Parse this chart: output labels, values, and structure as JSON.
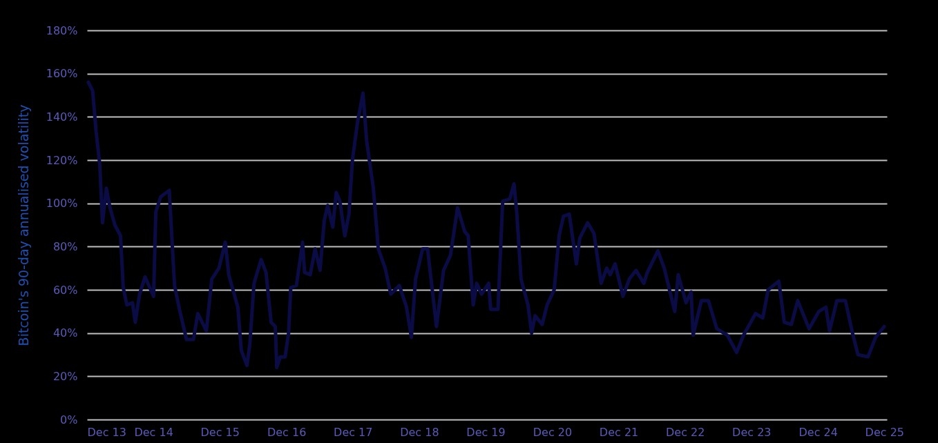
{
  "chart_data": {
    "type": "line",
    "ylabel": "Bitcoin's 90-day annualised volatility",
    "x": [
      "2013-12-08",
      "2014-01-01",
      "2014-01-20",
      "2014-02-09",
      "2014-02-24",
      "2014-03-17",
      "2014-04-06",
      "2014-05-03",
      "2014-06-03",
      "2014-06-18",
      "2014-07-08",
      "2014-08-08",
      "2014-08-23",
      "2014-09-16",
      "2014-10-16",
      "2014-12-02",
      "2014-12-14",
      "2015-01-10",
      "2015-02-26",
      "2015-03-27",
      "2015-04-23",
      "2015-06-01",
      "2015-07-09",
      "2015-08-02",
      "2015-09-18",
      "2015-10-18",
      "2015-11-26",
      "2015-12-31",
      "2016-01-19",
      "2016-03-09",
      "2016-03-28",
      "2016-04-28",
      "2016-05-14",
      "2016-06-06",
      "2016-07-15",
      "2016-08-11",
      "2016-09-08",
      "2016-10-01",
      "2016-10-09",
      "2016-10-28",
      "2016-11-24",
      "2016-12-13",
      "2016-12-25",
      "2017-01-25",
      "2017-02-28",
      "2017-03-11",
      "2017-04-11",
      "2017-05-08",
      "2017-06-04",
      "2017-06-27",
      "2017-07-16",
      "2017-08-13",
      "2017-09-01",
      "2017-09-21",
      "2017-10-18",
      "2017-11-10",
      "2017-11-29",
      "2017-12-26",
      "2018-01-26",
      "2018-02-15",
      "2018-03-24",
      "2018-04-20",
      "2018-05-28",
      "2018-06-28",
      "2018-08-14",
      "2018-09-22",
      "2018-10-19",
      "2018-11-11",
      "2018-12-20",
      "2019-01-16",
      "2019-03-06",
      "2019-04-14",
      "2019-05-22",
      "2019-06-30",
      "2019-08-08",
      "2019-08-27",
      "2019-09-24",
      "2019-10-13",
      "2019-11-09",
      "2019-12-18",
      "2019-12-29",
      "2020-02-07",
      "2020-03-04",
      "2020-04-12",
      "2020-05-05",
      "2020-05-20",
      "2020-06-13",
      "2020-07-21",
      "2020-08-10",
      "2020-08-29",
      "2020-10-07",
      "2020-11-03",
      "2020-12-12",
      "2021-01-08",
      "2021-02-01",
      "2021-03-05",
      "2021-04-13",
      "2021-05-02",
      "2021-06-14",
      "2021-07-19",
      "2021-08-27",
      "2021-09-27",
      "2021-10-16",
      "2021-11-12",
      "2021-12-25",
      "2022-01-29",
      "2022-03-07",
      "2022-04-19",
      "2022-05-08",
      "2022-07-05",
      "2022-08-09",
      "2022-10-06",
      "2022-10-25",
      "2022-12-07",
      "2023-01-04",
      "2023-01-15",
      "2023-03-01",
      "2023-04-09",
      "2023-05-25",
      "2023-07-22",
      "2023-09-11",
      "2023-10-19",
      "2023-12-24",
      "2024-02-02",
      "2024-03-02",
      "2024-04-30",
      "2024-05-30",
      "2024-07-08",
      "2024-08-12",
      "2024-10-13",
      "2024-12-06",
      "2025-01-14",
      "2025-02-03",
      "2025-03-15",
      "2025-05-01",
      "2025-06-09",
      "2025-07-09",
      "2025-09-02",
      "2025-10-14",
      "2025-11-30"
    ],
    "series": [
      {
        "color": "#0b0c45",
        "values": [
          156,
          152,
          133,
          118,
          91,
          107,
          98,
          90,
          85,
          61,
          53,
          54,
          45,
          58,
          66,
          57,
          96,
          103,
          106,
          62,
          51,
          37,
          37,
          49,
          41,
          65,
          70,
          82,
          67,
          52,
          32,
          25,
          35,
          63,
          74,
          68,
          45,
          43,
          24,
          29,
          29,
          40,
          61,
          62,
          82,
          68,
          67,
          79,
          69,
          92,
          99,
          89,
          105,
          101,
          85,
          95,
          120,
          137,
          151,
          129,
          107,
          79,
          70,
          58,
          62,
          52,
          38,
          65,
          79,
          79,
          43,
          69,
          76,
          98,
          87,
          85,
          53,
          63,
          58,
          63,
          51,
          51,
          101,
          102,
          109,
          96,
          65,
          53,
          40,
          48,
          44,
          53,
          60,
          85,
          94,
          95,
          72,
          84,
          91,
          86,
          63,
          70,
          67,
          72,
          57,
          65,
          69,
          63,
          68,
          78,
          70,
          50,
          67,
          54,
          59,
          39,
          55,
          55,
          42,
          39,
          31,
          39,
          49,
          47,
          60,
          64,
          45,
          44,
          55,
          42,
          50,
          52,
          41,
          55,
          55,
          40,
          30,
          29,
          38,
          43
        ]
      }
    ],
    "xlim": [
      "2013-12-01",
      "2025-12-15"
    ],
    "xticks": [
      {
        "value": "2013-12-01",
        "label": "Dec 13"
      },
      {
        "value": "2014-12-01",
        "label": "Dec 14"
      },
      {
        "value": "2015-12-01",
        "label": "Dec 15"
      },
      {
        "value": "2016-12-01",
        "label": "Dec 16"
      },
      {
        "value": "2017-12-01",
        "label": "Dec 17"
      },
      {
        "value": "2018-12-01",
        "label": "Dec 18"
      },
      {
        "value": "2019-12-01",
        "label": "Dec 19"
      },
      {
        "value": "2020-12-01",
        "label": "Dec 20"
      },
      {
        "value": "2021-12-01",
        "label": "Dec 21"
      },
      {
        "value": "2022-12-01",
        "label": "Dec 22"
      },
      {
        "value": "2023-12-01",
        "label": "Dec 23"
      },
      {
        "value": "2024-12-01",
        "label": "Dec 24"
      },
      {
        "value": "2025-12-01",
        "label": "Dec 25"
      }
    ],
    "ylim": [
      0,
      180
    ],
    "yticks": [
      {
        "value": 0,
        "label": "0%"
      },
      {
        "value": 20,
        "label": "20%"
      },
      {
        "value": 40,
        "label": "40%"
      },
      {
        "value": 60,
        "label": "60%"
      },
      {
        "value": 80,
        "label": "80%"
      },
      {
        "value": 100,
        "label": "100%"
      },
      {
        "value": 120,
        "label": "120%"
      },
      {
        "value": 140,
        "label": "140%"
      },
      {
        "value": 160,
        "label": "160%"
      },
      {
        "value": 180,
        "label": "180%"
      }
    ],
    "grid": "y",
    "marker": "none",
    "line_style": "solid"
  }
}
